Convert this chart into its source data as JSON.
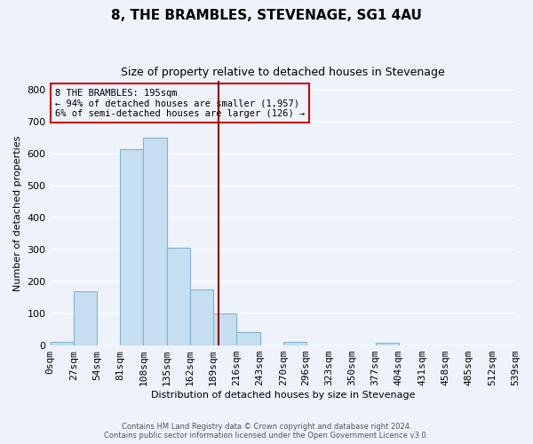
{
  "title": "8, THE BRAMBLES, STEVENAGE, SG1 4AU",
  "subtitle": "Size of property relative to detached houses in Stevenage",
  "xlabel": "Distribution of detached houses by size in Stevenage",
  "ylabel": "Number of detached properties",
  "bin_edges": [
    0,
    27,
    54,
    81,
    108,
    135,
    162,
    189,
    216,
    243,
    270,
    296,
    323,
    350,
    377,
    404,
    431,
    458,
    485,
    512,
    539
  ],
  "bar_heights": [
    10,
    170,
    0,
    615,
    650,
    305,
    175,
    100,
    42,
    0,
    12,
    0,
    0,
    0,
    8,
    0,
    0,
    0,
    0,
    0
  ],
  "bar_color": "#c6dff0",
  "bar_edgecolor": "#7fb3d3",
  "property_value": 195,
  "vline_color": "#8b0000",
  "annotation_line1": "8 THE BRAMBLES: 195sqm",
  "annotation_line2": "← 94% of detached houses are smaller (1,957)",
  "annotation_line3": "6% of semi-detached houses are larger (126) →",
  "annotation_box_edgecolor": "#cc0000",
  "footnote_line1": "Contains HM Land Registry data © Crown copyright and database right 2024.",
  "footnote_line2": "Contains public sector information licensed under the Open Government Licence v3.0.",
  "ylim": [
    0,
    830
  ],
  "yticks": [
    0,
    100,
    200,
    300,
    400,
    500,
    600,
    700,
    800
  ],
  "tick_labels": [
    "0sqm",
    "27sqm",
    "54sqm",
    "81sqm",
    "108sqm",
    "135sqm",
    "162sqm",
    "189sqm",
    "216sqm",
    "243sqm",
    "270sqm",
    "296sqm",
    "323sqm",
    "350sqm",
    "377sqm",
    "404sqm",
    "431sqm",
    "458sqm",
    "485sqm",
    "512sqm",
    "539sqm"
  ],
  "background_color": "#eef2fb",
  "grid_color": "#ffffff",
  "figsize": [
    6.0,
    5.0
  ],
  "dpi": 100
}
